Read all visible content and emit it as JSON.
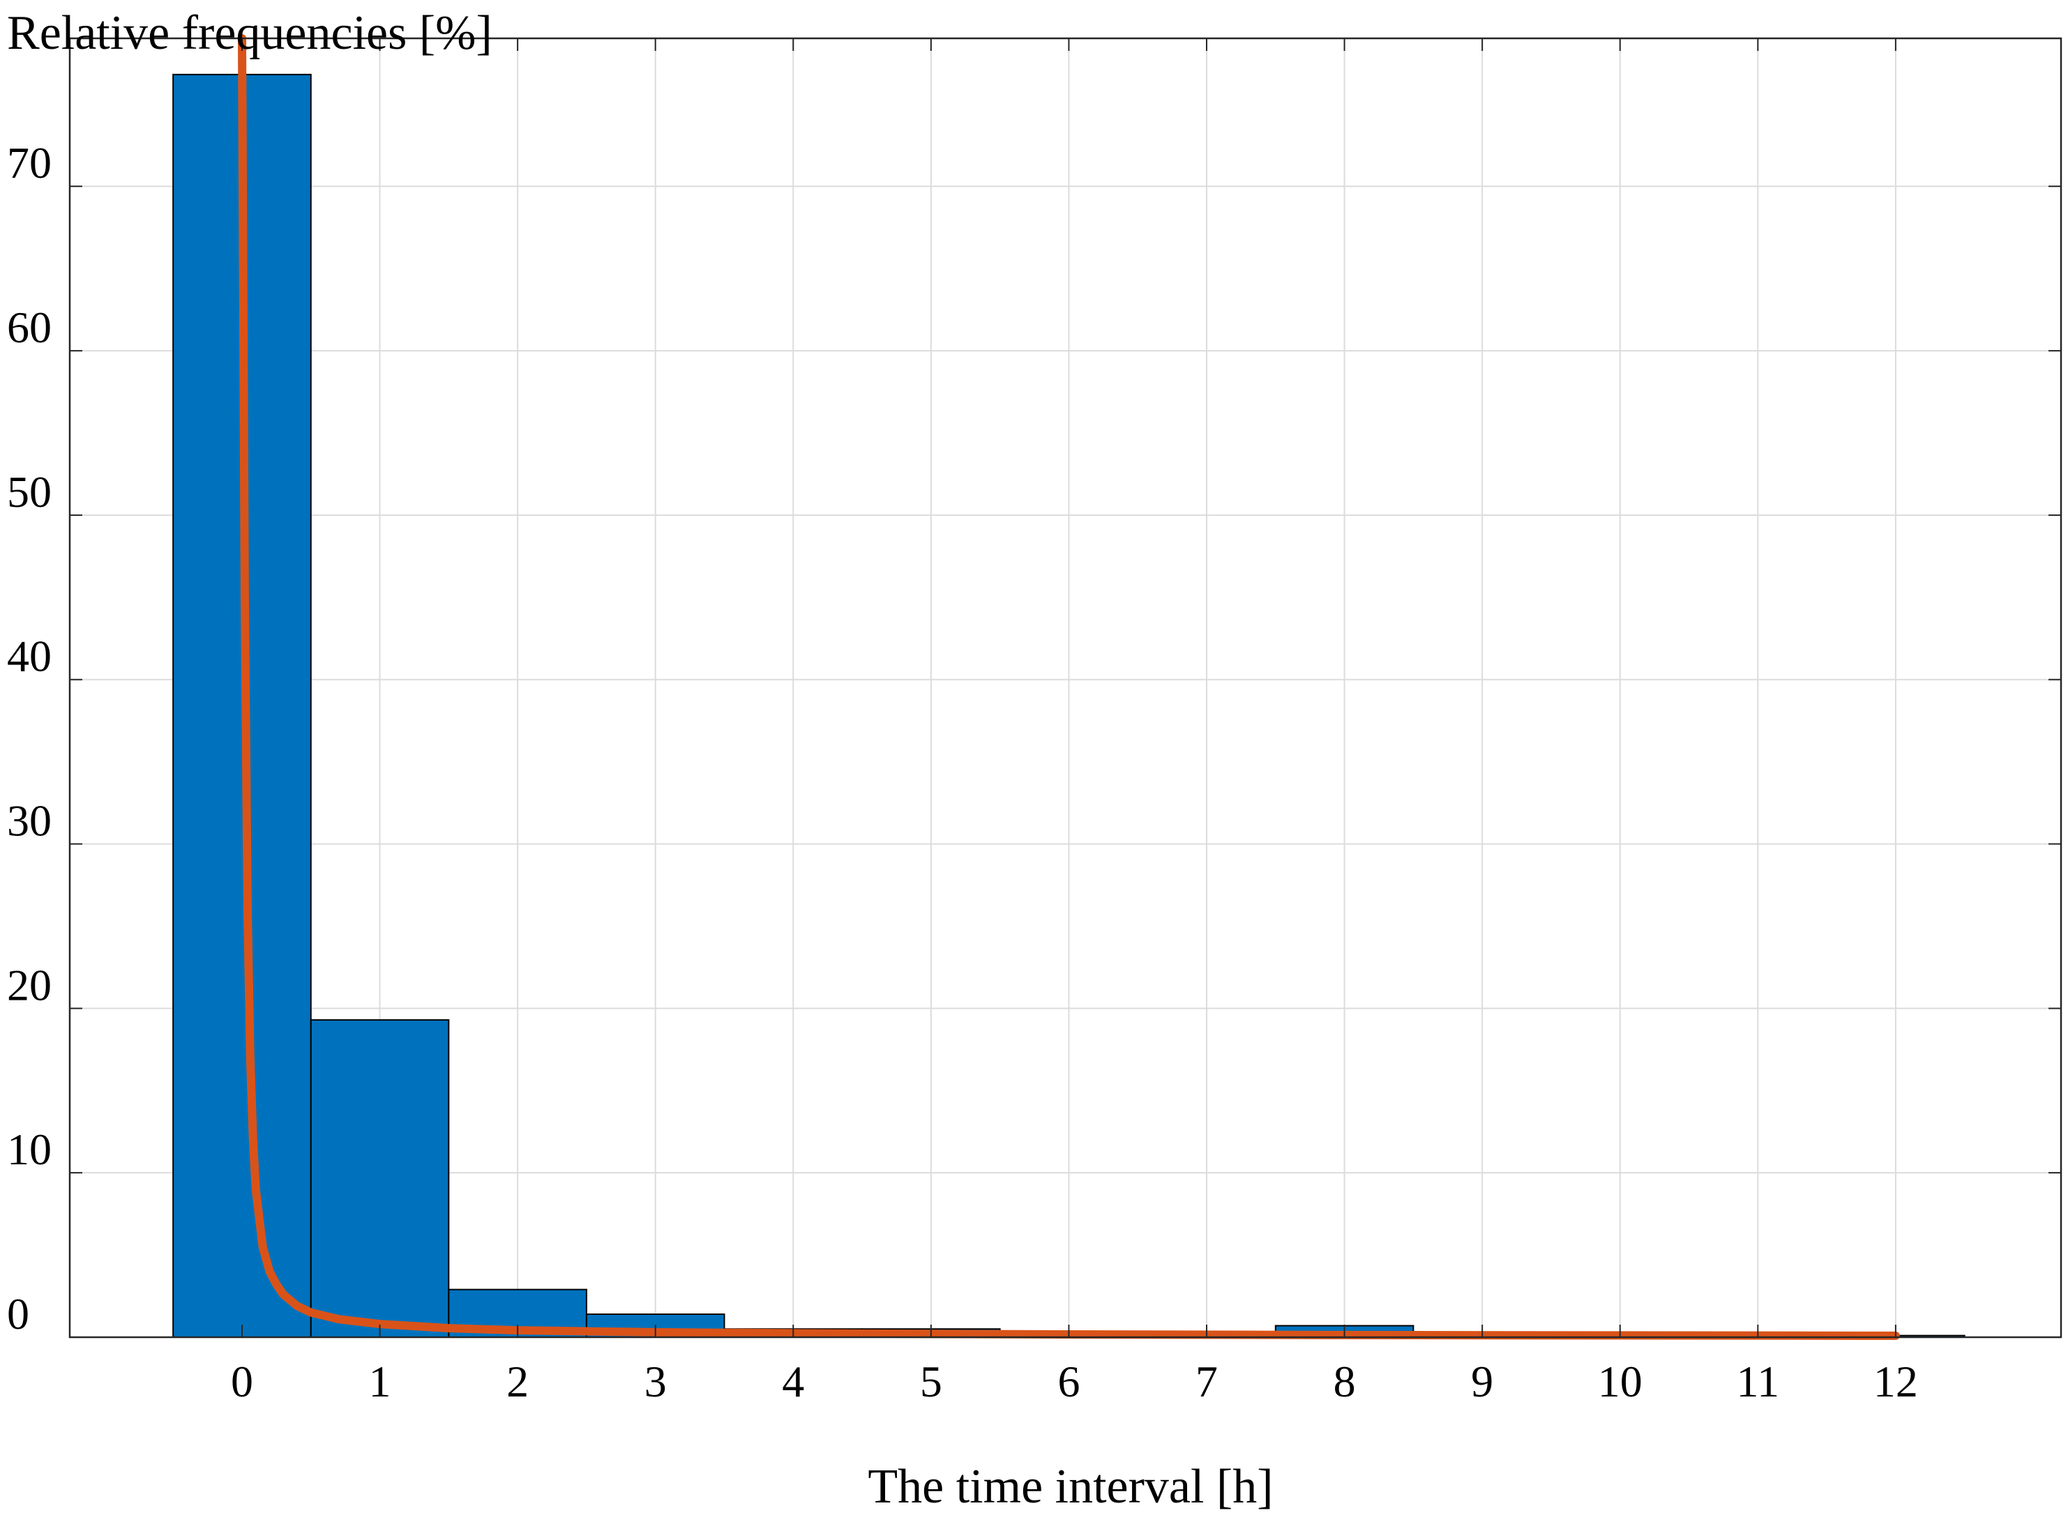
{
  "chart_data": {
    "type": "bar",
    "ylabel": "Relative frequencies [%]",
    "xlabel": "The time interval [h]",
    "ylim": [
      0,
      79
    ],
    "xlim": [
      -1.25,
      13.2
    ],
    "grid": true,
    "x_ticks": [
      0,
      1,
      2,
      3,
      4,
      5,
      6,
      7,
      8,
      9,
      10,
      11,
      12
    ],
    "y_ticks": [
      0,
      10,
      20,
      30,
      40,
      50,
      60,
      70
    ],
    "bars": {
      "categories": [
        0,
        1,
        2,
        3,
        4,
        5,
        6,
        7,
        8,
        9,
        10,
        11,
        12
      ],
      "values": [
        76.8,
        19.3,
        2.9,
        1.4,
        0.5,
        0.5,
        0.3,
        0.3,
        0.7,
        0.2,
        0.2,
        0.1,
        0.1
      ],
      "color": "#0072BD"
    },
    "fit_curve": {
      "color": "#D95319",
      "x": [
        0.0,
        0.02,
        0.04,
        0.06,
        0.08,
        0.1,
        0.15,
        0.2,
        0.25,
        0.3,
        0.4,
        0.5,
        0.7,
        1.0,
        1.5,
        2.0,
        3.0,
        4.0,
        5.0,
        6.0,
        8.0,
        10.0,
        12.0
      ],
      "y": [
        79.0,
        45.0,
        26.0,
        17.0,
        12.0,
        9.0,
        5.5,
        4.0,
        3.2,
        2.6,
        1.9,
        1.5,
        1.1,
        0.8,
        0.55,
        0.42,
        0.3,
        0.24,
        0.2,
        0.17,
        0.13,
        0.11,
        0.09
      ]
    }
  }
}
